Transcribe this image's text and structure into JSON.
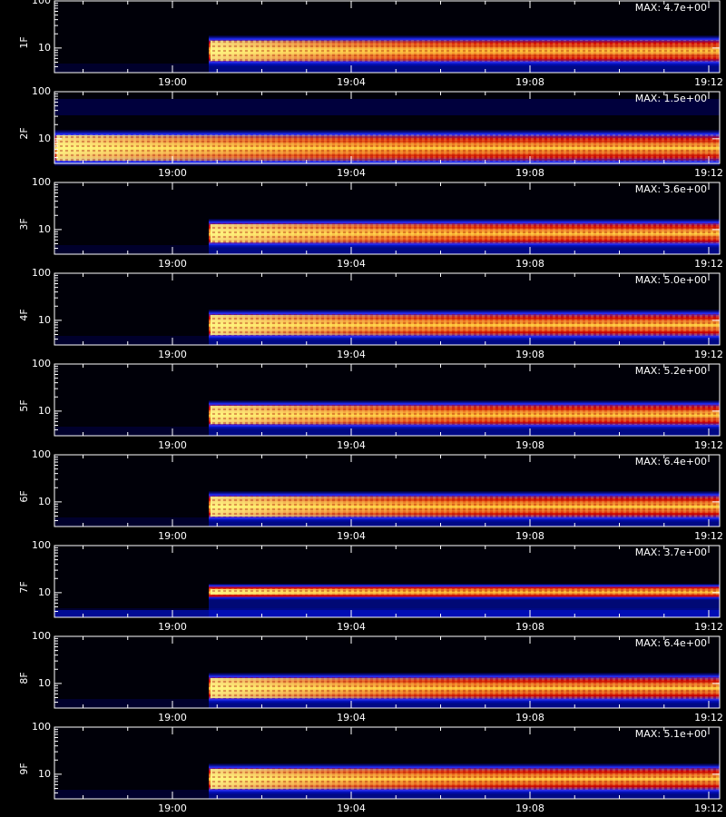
{
  "chart_data": [
    {
      "type": "spectrogram",
      "ylabel": "1F",
      "max_label": "MAX: 4.7e+00",
      "log_y": true,
      "ylim": [
        3,
        100
      ],
      "yticks": [
        10,
        100
      ],
      "xticks": [
        "19:00",
        "19:04",
        "19:08",
        "19:12"
      ]
    },
    {
      "type": "spectrogram",
      "ylabel": "2F",
      "max_label": "MAX: 1.5e+00",
      "log_y": true,
      "ylim": [
        3,
        100
      ],
      "yticks": [
        10,
        100
      ],
      "xticks": [
        "19:00",
        "19:04",
        "19:08",
        "19:12"
      ]
    },
    {
      "type": "spectrogram",
      "ylabel": "3F",
      "max_label": "MAX: 3.6e+00",
      "log_y": true,
      "ylim": [
        3,
        100
      ],
      "yticks": [
        10,
        100
      ],
      "xticks": [
        "19:00",
        "19:04",
        "19:08",
        "19:12"
      ]
    },
    {
      "type": "spectrogram",
      "ylabel": "4F",
      "max_label": "MAX: 5.0e+00",
      "log_y": true,
      "ylim": [
        3,
        100
      ],
      "yticks": [
        10,
        100
      ],
      "xticks": [
        "19:00",
        "19:04",
        "19:08",
        "19:12"
      ]
    },
    {
      "type": "spectrogram",
      "ylabel": "5F",
      "max_label": "MAX: 5.2e+00",
      "log_y": true,
      "ylim": [
        3,
        100
      ],
      "yticks": [
        10,
        100
      ],
      "xticks": [
        "19:00",
        "19:04",
        "19:08",
        "19:12"
      ]
    },
    {
      "type": "spectrogram",
      "ylabel": "6F",
      "max_label": "MAX: 6.4e+00",
      "log_y": true,
      "ylim": [
        3,
        100
      ],
      "yticks": [
        10,
        100
      ],
      "xticks": [
        "19:00",
        "19:04",
        "19:08",
        "19:12"
      ]
    },
    {
      "type": "spectrogram",
      "ylabel": "7F",
      "max_label": "MAX: 3.7e+00",
      "log_y": true,
      "ylim": [
        3,
        100
      ],
      "yticks": [
        10,
        100
      ],
      "xticks": [
        "19:00",
        "19:04",
        "19:08",
        "19:12"
      ]
    },
    {
      "type": "spectrogram",
      "ylabel": "8F",
      "max_label": "MAX: 6.4e+00",
      "log_y": true,
      "ylim": [
        3,
        100
      ],
      "yticks": [
        10,
        100
      ],
      "xticks": [
        "19:00",
        "19:04",
        "19:08",
        "19:12"
      ]
    },
    {
      "type": "spectrogram",
      "ylabel": "9F",
      "max_label": "MAX: 5.1e+00",
      "log_y": true,
      "ylim": [
        3,
        100
      ],
      "yticks": [
        10,
        100
      ],
      "xticks": [
        "19:00",
        "19:04",
        "19:08",
        "19:12"
      ]
    }
  ]
}
